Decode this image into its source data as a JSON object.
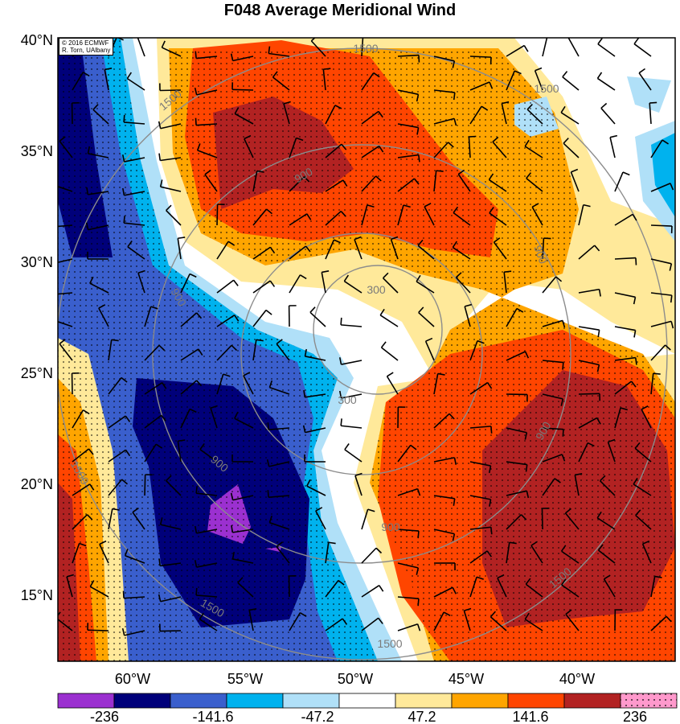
{
  "title": "F048 Average Meridional Wind",
  "credit": {
    "line1": "© 2016 ECMWF",
    "line2": "R. Torn, UAlbany"
  },
  "latitude_labels": [
    "40°N",
    "35°N",
    "30°N",
    "25°N",
    "20°N",
    "15°N"
  ],
  "longitude_labels": [
    "60°W",
    "55°W",
    "50°W",
    "45°W",
    "40°W"
  ],
  "contour_labels": [
    "1500",
    "1500",
    "1500",
    "900",
    "900",
    "900",
    "900",
    "900",
    "300",
    "300",
    "900",
    "1500",
    "1500",
    "1500",
    "1500"
  ],
  "colorbar": {
    "tick_labels": [
      "-236",
      "-141.6",
      "-47.2",
      "47.2",
      "141.6",
      "236"
    ],
    "colors": [
      "#9b30d0",
      "#00007a",
      "#3a5fcd",
      "#00b2ee",
      "#b0e0f8",
      "#ffffff",
      "#ffe99a",
      "#ffa500",
      "#ff4500",
      "#b22222",
      "#ff99cc"
    ]
  },
  "map": {
    "lat_range": [
      12,
      40
    ],
    "lon_range": [
      -64,
      -36
    ],
    "variable": "Average Meridional Wind",
    "forecast_hour": "F048"
  }
}
